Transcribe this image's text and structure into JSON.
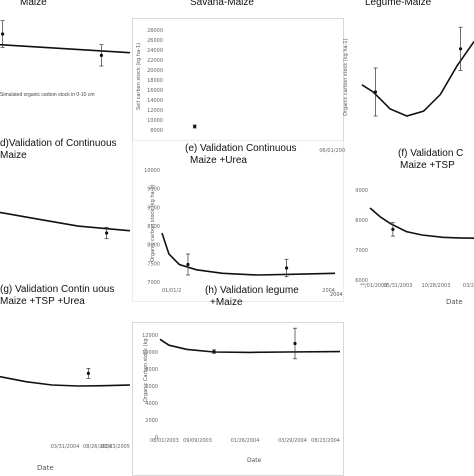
{
  "captions": {
    "a": "Maize",
    "a_note": "Simulated organic carbon stock in 0-10 cm",
    "b": "Savana-Maize",
    "c": "Legume-Maize",
    "d_line1": "d)Validation of Continuous",
    "d_line2": "Maize",
    "e_line1": "(e) Validation Continuous",
    "e_line2": "Maize +Urea",
    "f_line1": "(f) Validation C",
    "f_line2": "Maize +TSP",
    "g_line1": "(g) Validation Contin      uous",
    "g_line2": "Maize +TSP +Urea",
    "h_line1": "(h) Validation legume",
    "h_line2": "+Maize"
  },
  "axis_text": {
    "b_ylabel": "Soil carbon stock (kg ha-1)",
    "c_ylabel": "Organic carbon stock (kg ha-1)",
    "e_ylabel": "Organic carbon stock (kg ha-1)",
    "h_ylabel": "Organic Carbon stock (kg",
    "f_xlabel": "Date",
    "h_xlabel": "Date",
    "g_xlabel": "Date",
    "e_corner": "2004"
  },
  "chart_data": [
    {
      "id": "a",
      "type": "line",
      "series": [
        {
          "values": [
            [
              0,
              23700
            ],
            [
              1,
              23400
            ]
          ]
        }
      ],
      "observed": [
        {
          "x": 0.02,
          "y": 24100,
          "err": 500
        },
        {
          "x": 0.78,
          "y": 23300,
          "err": 400
        }
      ],
      "xlim": [
        0,
        1
      ],
      "ylim": [
        22000,
        25000
      ]
    },
    {
      "id": "b",
      "type": "line",
      "yticks": [
        "28000",
        "26000",
        "24000",
        "22000",
        "20000",
        "18000",
        "16000",
        "14000",
        "12000",
        "10000",
        "8000"
      ],
      "ylim": [
        8000,
        28000
      ],
      "series": [],
      "observed": [
        {
          "x": 0.18,
          "y": 8700,
          "err": 300
        }
      ]
    },
    {
      "id": "c",
      "type": "line",
      "xticks": [
        "06/01/200"
      ],
      "series": [
        {
          "values": [
            [
              0.0,
              23800
            ],
            [
              0.1,
              23500
            ],
            [
              0.25,
              22800
            ],
            [
              0.4,
              22500
            ],
            [
              0.55,
              22700
            ],
            [
              0.7,
              23400
            ],
            [
              0.85,
              24600
            ],
            [
              1.0,
              25600
            ]
          ]
        }
      ],
      "observed": [
        {
          "x": 0.12,
          "y": 23500,
          "err": 1000
        },
        {
          "x": 0.88,
          "y": 25300,
          "err": 900
        }
      ],
      "xlim": [
        0,
        1
      ],
      "ylim": [
        21500,
        26500
      ]
    },
    {
      "id": "d",
      "type": "line",
      "series": [
        {
          "values": [
            [
              0,
              22800
            ],
            [
              0.3,
              22500
            ],
            [
              0.6,
              22200
            ],
            [
              1,
              22000
            ]
          ]
        }
      ],
      "observed": [
        {
          "x": 0.82,
          "y": 21900,
          "err": 250
        }
      ],
      "xlim": [
        0,
        1
      ],
      "ylim": [
        20500,
        24000
      ]
    },
    {
      "id": "e",
      "type": "line",
      "yticks": [
        "10000",
        "9500",
        "9000",
        "8500",
        "8000",
        "7500",
        "7000"
      ],
      "xticks": [
        "01/01/2",
        "",
        "",
        "",
        "",
        "2004"
      ],
      "series": [
        {
          "values": [
            [
              0.0,
              8200
            ],
            [
              0.04,
              7600
            ],
            [
              0.1,
              7300
            ],
            [
              0.2,
              7150
            ],
            [
              0.35,
              7050
            ],
            [
              0.55,
              7000
            ],
            [
              0.75,
              7020
            ],
            [
              1.0,
              7050
            ]
          ]
        }
      ],
      "observed": [
        {
          "x": 0.15,
          "y": 7300,
          "err": 300
        },
        {
          "x": 0.72,
          "y": 7200,
          "err": 250
        }
      ],
      "xlim": [
        0,
        1
      ],
      "ylim": [
        6800,
        10000
      ]
    },
    {
      "id": "f",
      "type": "line",
      "yticks": [
        "9000",
        "8000",
        "7000",
        "6000"
      ],
      "xticks": [
        "**/01/2003",
        "05/31/2003",
        "10/28/2003",
        "03/2"
      ],
      "series": [
        {
          "values": [
            [
              0.0,
              9200
            ],
            [
              0.1,
              8800
            ],
            [
              0.2,
              8500
            ],
            [
              0.35,
              8150
            ],
            [
              0.5,
              8000
            ],
            [
              0.7,
              7900
            ],
            [
              0.85,
              7870
            ],
            [
              1.0,
              7860
            ]
          ]
        }
      ],
      "observed": [
        {
          "x": 0.22,
          "y": 8250,
          "err": 300
        }
      ],
      "xlim": [
        0,
        1
      ],
      "ylim": [
        6000,
        10000
      ]
    },
    {
      "id": "g",
      "type": "line",
      "xticks": [
        "",
        "",
        "03/31/2004",
        "08/26/2004",
        "01/23/2005"
      ],
      "series": [
        {
          "values": [
            [
              0.0,
              7600
            ],
            [
              0.2,
              7450
            ],
            [
              0.4,
              7350
            ],
            [
              0.6,
              7320
            ],
            [
              0.8,
              7330
            ],
            [
              1.0,
              7350
            ]
          ]
        }
      ],
      "observed": [
        {
          "x": 0.68,
          "y": 7700,
          "err": 150
        }
      ],
      "xlim": [
        0,
        1
      ],
      "ylim": [
        6000,
        9000
      ]
    },
    {
      "id": "h",
      "type": "line",
      "yticks": [
        "12000",
        "10000",
        "8000",
        "6000",
        "4000",
        "2000",
        "0"
      ],
      "xticks": [
        "08/01/2003",
        "09/09/2003",
        "01/26/2004",
        "03/29/2004",
        "08/23/2004"
      ],
      "series": [
        {
          "values": [
            [
              0.0,
              11500
            ],
            [
              0.05,
              10800
            ],
            [
              0.15,
              10300
            ],
            [
              0.3,
              10000
            ],
            [
              0.5,
              9950
            ],
            [
              0.7,
              10000
            ],
            [
              1.0,
              10050
            ]
          ]
        }
      ],
      "observed": [
        {
          "x": 0.3,
          "y": 10050,
          "err": 200
        },
        {
          "x": 0.75,
          "y": 11000,
          "err": 1800
        }
      ],
      "xlim": [
        0,
        1
      ],
      "ylim": [
        0,
        12000
      ]
    }
  ]
}
